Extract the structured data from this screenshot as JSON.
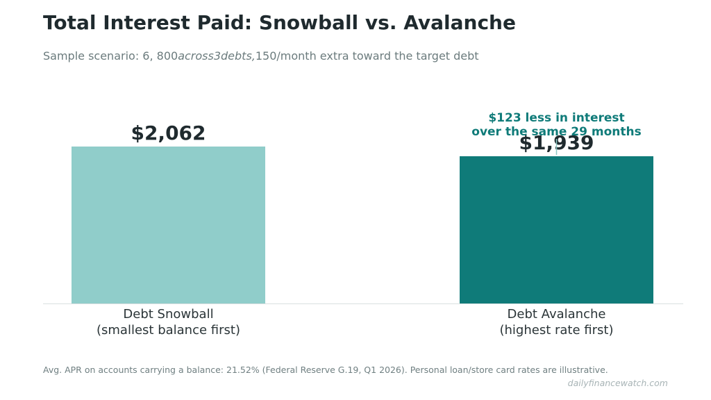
{
  "header": {
    "title": "Total Interest Paid: Snowball vs. Avalanche",
    "subtitle_pre": "Sample scenario: 6, 800",
    "subtitle_italic": "across3debts,",
    "subtitle_post": "150/month extra toward the target debt"
  },
  "chart_data": {
    "type": "bar",
    "categories": [
      "Debt Snowball\n(smallest balance first)",
      "Debt Avalanche\n(highest rate first)"
    ],
    "values": [
      2062,
      1939
    ],
    "value_labels": [
      "$2,062",
      "$1,939"
    ],
    "colors": [
      "#90cdca",
      "#0f7b79"
    ],
    "annotation": {
      "lines": [
        "$123 less in interest",
        "over the same 29 months"
      ],
      "target_index": 1,
      "color": "#0f7b79"
    },
    "ylim": [
      0,
      2350
    ],
    "grid": false,
    "xlabel": "",
    "ylabel": ""
  },
  "footer": {
    "note": "Avg. APR on accounts carrying a balance: 21.52% (Federal Reserve G.19, Q1 2026). Personal loan/store card rates are illustrative.",
    "source": "dailyfinancewatch.com"
  }
}
